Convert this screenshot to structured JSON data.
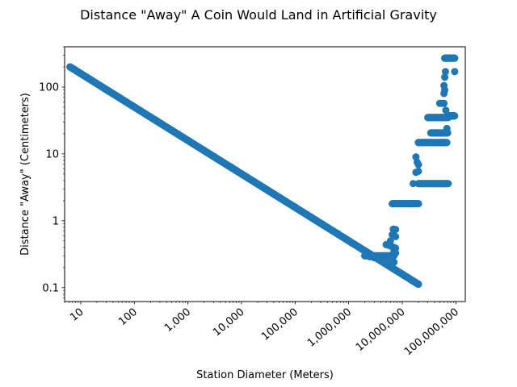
{
  "chart_data": {
    "type": "scatter",
    "title": "Distance \"Away\" A Coin Would Land in Artificial Gravity",
    "xlabel": "Station Diameter (Meters)",
    "ylabel": "Distance \"Away\" (Centimeters)",
    "x_scale": "log",
    "y_scale": "log",
    "xlim": [
      5,
      150000000
    ],
    "ylim": [
      0.062,
      400
    ],
    "grid": false,
    "legend": "none",
    "marker_color": "#1f77b4",
    "x_ticks": [
      {
        "value": 10,
        "label": "10"
      },
      {
        "value": 100,
        "label": "100"
      },
      {
        "value": 1000,
        "label": "1,000"
      },
      {
        "value": 10000,
        "label": "10,000"
      },
      {
        "value": 100000,
        "label": "100,000"
      },
      {
        "value": 1000000,
        "label": "1,000,000"
      },
      {
        "value": 10000000,
        "label": "10,000,000"
      },
      {
        "value": 100000000,
        "label": "100,000,000"
      }
    ],
    "y_ticks": [
      {
        "value": 0.1,
        "label": "0.1"
      },
      {
        "value": 1,
        "label": "1"
      },
      {
        "value": 10,
        "label": "10"
      },
      {
        "value": 100,
        "label": "100"
      }
    ],
    "series": [
      {
        "x": [
          6.3,
          8,
          10,
          13,
          16,
          20,
          25,
          32,
          40,
          50,
          63,
          80,
          100,
          126,
          158,
          200,
          251,
          316,
          398,
          501,
          631,
          794,
          1000,
          1259,
          1585,
          1995,
          2512,
          3162,
          3981,
          5012,
          6310,
          7943,
          10000,
          12589,
          15849,
          19953,
          25119,
          31623,
          39811,
          50119,
          63096,
          79433,
          100000,
          125893,
          158489,
          199526,
          251189,
          316228,
          398107,
          501187,
          630957,
          794328,
          1000000,
          1258925,
          1584893,
          1995262,
          2511886,
          3162278,
          3981072,
          5011872,
          6309573,
          7943282,
          10000000,
          12589254,
          15848932,
          19952623
        ],
        "y": [
          200,
          178,
          160,
          140,
          126,
          112,
          100,
          89,
          80,
          71,
          63,
          56,
          50.6,
          45,
          40.1,
          35.8,
          31.9,
          28.4,
          25.3,
          22.6,
          20.1,
          17.9,
          16,
          14.2,
          12.7,
          11.3,
          10.1,
          9,
          8,
          7.1,
          6.4,
          5.7,
          5.06,
          4.5,
          4.01,
          3.58,
          3.19,
          2.84,
          2.53,
          2.26,
          2.01,
          1.79,
          1.6,
          1.42,
          1.27,
          1.13,
          1.01,
          0.9,
          0.8,
          0.71,
          0.64,
          0.57,
          0.506,
          0.45,
          0.401,
          0.358,
          0.319,
          0.284,
          0.253,
          0.226,
          0.201,
          0.179,
          0.16,
          0.142,
          0.127,
          0.113
        ]
      },
      {
        "x": [
          2000000,
          2500000,
          3000000,
          3500000,
          4000000,
          5000000,
          6000000,
          7000000,
          5000000,
          5500000,
          6000000,
          6500000,
          7000000,
          7500000,
          6500000,
          7000000,
          7500000,
          6000000,
          6800000,
          7500000,
          7000000,
          7500000
        ],
        "y": [
          0.3,
          0.29,
          0.28,
          0.27,
          0.26,
          0.26,
          0.25,
          0.24,
          0.44,
          0.43,
          0.42,
          0.41,
          0.4,
          0.39,
          0.62,
          0.6,
          0.58,
          0.5,
          0.75,
          0.74,
          0.35,
          0.33
        ]
      },
      {
        "x": [
          7000000,
          9000000,
          11000000,
          13000000,
          15000000,
          18000000,
          20000000,
          16000000,
          18000000,
          20000000,
          18000000,
          19000000,
          20000000
        ],
        "y": [
          1.8,
          1.8,
          1.8,
          1.8,
          1.8,
          1.8,
          1.8,
          3.6,
          5.3,
          6.9,
          9,
          7.5,
          5.5
        ]
      },
      {
        "x": [
          20000000,
          25000000,
          30000000,
          35000000,
          40000000,
          45000000,
          50000000,
          55000000,
          60000000,
          65000000,
          70000000,
          20000000,
          25000000,
          30000000,
          35000000,
          40000000,
          45000000,
          50000000,
          55000000,
          60000000,
          65000000,
          35000000,
          40000000,
          45000000,
          50000000,
          55000000,
          60000000,
          65000000,
          70000000,
          30000000,
          35000000,
          40000000,
          45000000,
          50000000,
          55000000,
          60000000,
          65000000,
          70000000,
          75000000,
          80000000,
          85000000,
          90000000,
          50000000,
          55000000,
          60000000,
          60000000,
          62000000,
          60000000,
          62000000,
          64000000,
          63000000,
          65000000,
          67000000,
          70000000,
          75000000,
          80000000,
          85000000,
          90000000,
          95000000,
          68000000,
          65000000,
          95000000
        ],
        "y": [
          3.6,
          3.6,
          3.6,
          3.6,
          3.6,
          3.6,
          3.6,
          3.6,
          3.6,
          3.6,
          3.6,
          14.8,
          14.8,
          14.8,
          14.8,
          14.8,
          14.8,
          14.8,
          14.8,
          14.8,
          14.8,
          20.6,
          20.6,
          20.6,
          20.6,
          20.6,
          20.6,
          20.6,
          20.6,
          35,
          35,
          35,
          35,
          35,
          35,
          35,
          35,
          37,
          37,
          37,
          37,
          37,
          57,
          57,
          57,
          80,
          90,
          105,
          140,
          170,
          270,
          270,
          270,
          270,
          270,
          270,
          270,
          270,
          270,
          24,
          45,
          170
        ]
      }
    ]
  }
}
